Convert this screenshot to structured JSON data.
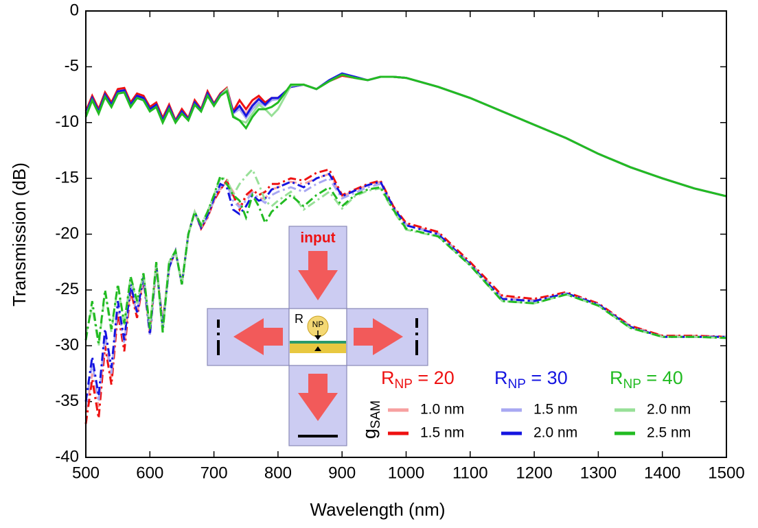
{
  "chart_data": {
    "type": "line",
    "xlabel": "Wavelength  (nm)",
    "ylabel": "Transmission  (dB)",
    "xlim": [
      500,
      1500
    ],
    "ylim": [
      -40,
      0
    ],
    "xticks": [
      500,
      600,
      700,
      800,
      900,
      1000,
      1100,
      1200,
      1300,
      1400,
      1500
    ],
    "yticks": [
      -40,
      -35,
      -30,
      -25,
      -20,
      -15,
      -10,
      -5,
      0
    ],
    "legend": {
      "g": "g",
      "g_sub": "SAM",
      "groups": [
        {
          "r": "R",
          "sub": "NP",
          "eq": " = 20",
          "color": "#ee1111"
        },
        {
          "r": "R",
          "sub": "NP",
          "eq": " = 30",
          "color": "#1515e0"
        },
        {
          "r": "R",
          "sub": "NP",
          "eq": " = 40",
          "color": "#22bb22"
        }
      ]
    },
    "inset": {
      "input": "input",
      "r": "R",
      "np": "NP"
    },
    "x": [
      500,
      510,
      520,
      530,
      540,
      550,
      560,
      570,
      580,
      590,
      600,
      610,
      620,
      630,
      640,
      650,
      660,
      670,
      680,
      690,
      700,
      710,
      720,
      730,
      740,
      750,
      760,
      770,
      780,
      790,
      800,
      820,
      840,
      860,
      880,
      900,
      920,
      940,
      960,
      980,
      1000,
      1050,
      1100,
      1150,
      1200,
      1250,
      1300,
      1350,
      1400,
      1450,
      1500
    ],
    "series": [
      {
        "name": "1.0 nm",
        "color": "#f7a0a0",
        "values": [
          -9.1,
          -7.7,
          -8.8,
          -7.3,
          -8.2,
          -7,
          -6.9,
          -8.2,
          -7.4,
          -7.6,
          -8.6,
          -8.2,
          -9.6,
          -8.4,
          -9.8,
          -8.8,
          -9.6,
          -8,
          -8.8,
          -7.2,
          -8.3,
          -7.4,
          -6.9,
          -9,
          -8.5,
          -9.2,
          -8.4,
          -7.8,
          -8.3,
          -7.9,
          -7.8,
          -6.8,
          -6.6,
          -7,
          -6.3,
          -5.8,
          -6,
          -6.2,
          -5.9,
          -5.9,
          -6,
          -6.8,
          -7.8,
          -9,
          -10.2,
          -11.4,
          -12.8,
          -14,
          -15,
          -15.9,
          -16.6
        ],
        "cross_values": [
          -36,
          -32.5,
          -35.5,
          -29.5,
          -33,
          -26.8,
          -30,
          -24.8,
          -27.3,
          -23.9,
          -29,
          -22.8,
          -28,
          -23,
          -21.5,
          -24.5,
          -20,
          -18,
          -19.5,
          -18.5,
          -17,
          -16,
          -15.3,
          -16.2,
          -17.5,
          -16.8,
          -16.2,
          -16.8,
          -16.8,
          -16,
          -15.8,
          -15.3,
          -15.5,
          -15,
          -14.6,
          -16.6,
          -16.1,
          -15.6,
          -15.3,
          -17.6,
          -19.1,
          -19.9,
          -22.6,
          -25.6,
          -25.9,
          -25.3,
          -26.3,
          -28.2,
          -29.1,
          -29.1,
          -29.2
        ]
      },
      {
        "name": "1.5 nm",
        "color": "#ee1111",
        "values": [
          -9,
          -7.6,
          -8.8,
          -7.3,
          -8.2,
          -7,
          -6.9,
          -8.2,
          -7.4,
          -7.6,
          -8.6,
          -8.2,
          -9.6,
          -8.4,
          -9.8,
          -8.8,
          -9.6,
          -8,
          -8.8,
          -7.2,
          -8.3,
          -7.4,
          -6.9,
          -9,
          -8,
          -8.8,
          -8,
          -7.6,
          -8.2,
          -7.8,
          -7.8,
          -6.8,
          -6.6,
          -7,
          -6.3,
          -5.8,
          -6,
          -6.2,
          -5.9,
          -5.9,
          -6,
          -6.8,
          -7.8,
          -9,
          -10.2,
          -11.4,
          -12.8,
          -14,
          -15,
          -15.9,
          -16.6
        ],
        "cross_values": [
          -37,
          -33,
          -36.5,
          -30,
          -33.5,
          -27,
          -30.5,
          -25,
          -27.5,
          -24,
          -29,
          -22.8,
          -28,
          -23,
          -21.5,
          -24.5,
          -20,
          -18,
          -19.5,
          -18.5,
          -17,
          -16,
          -15.2,
          -16.5,
          -17.8,
          -16.5,
          -16,
          -16.5,
          -16.2,
          -15.5,
          -15.5,
          -15,
          -15.2,
          -14.5,
          -14.2,
          -16.5,
          -16,
          -15.5,
          -15.2,
          -17.5,
          -19,
          -19.8,
          -22.5,
          -25.5,
          -25.8,
          -25.2,
          -26.2,
          -28.2,
          -29.1,
          -29.1,
          -29.2
        ]
      },
      {
        "name": "1.5 nm",
        "color": "#a8a8f2",
        "values": [
          -9.2,
          -7.8,
          -9,
          -7.5,
          -8.4,
          -7.2,
          -7.1,
          -8.4,
          -7.6,
          -7.8,
          -8.8,
          -8.4,
          -9.8,
          -8.6,
          -9.9,
          -9,
          -9.7,
          -8.2,
          -8.9,
          -7.4,
          -8.4,
          -7.5,
          -7,
          -9.2,
          -8.8,
          -9.6,
          -8.8,
          -8.2,
          -8.5,
          -8,
          -7.9,
          -6.8,
          -6.6,
          -7,
          -6.3,
          -5.7,
          -6,
          -6.2,
          -5.9,
          -5.9,
          -6,
          -6.8,
          -7.8,
          -9,
          -10.2,
          -11.4,
          -12.8,
          -14,
          -15,
          -15.9,
          -16.6
        ],
        "cross_values": [
          -35.5,
          -31.5,
          -35,
          -29,
          -32.5,
          -26.3,
          -29.8,
          -24.6,
          -27.1,
          -23.8,
          -29,
          -22.7,
          -28.2,
          -23,
          -21.5,
          -24.5,
          -20,
          -18,
          -19.4,
          -18.4,
          -16.9,
          -15.7,
          -15.5,
          -17,
          -17.6,
          -17,
          -16.3,
          -16.8,
          -17.2,
          -16.5,
          -16.2,
          -15.8,
          -16.2,
          -15.5,
          -15,
          -16.8,
          -16.3,
          -15.8,
          -15.5,
          -17.7,
          -19.2,
          -20,
          -22.7,
          -25.8,
          -26,
          -25.3,
          -26.3,
          -28.3,
          -29.2,
          -29.2,
          -29.2
        ]
      },
      {
        "name": "2.0 nm",
        "color": "#1515e0",
        "values": [
          -9.2,
          -7.8,
          -9,
          -7.5,
          -8.4,
          -7.2,
          -7.1,
          -8.4,
          -7.6,
          -7.8,
          -8.8,
          -8.4,
          -9.8,
          -8.6,
          -9.9,
          -9,
          -9.7,
          -8.2,
          -8.9,
          -7.4,
          -8.4,
          -7.5,
          -7,
          -9.1,
          -8.5,
          -9.4,
          -8.5,
          -7.9,
          -8.4,
          -7.8,
          -7.8,
          -6.8,
          -6.6,
          -7,
          -6.2,
          -5.6,
          -5.9,
          -6.2,
          -5.9,
          -5.9,
          -6,
          -6.8,
          -7.8,
          -9,
          -10.2,
          -11.4,
          -12.8,
          -14,
          -15,
          -15.9,
          -16.6
        ],
        "cross_values": [
          -35,
          -31,
          -34.5,
          -28.5,
          -32,
          -26,
          -29.5,
          -24.5,
          -27,
          -23.8,
          -29,
          -22.7,
          -28.3,
          -23,
          -21.5,
          -24.5,
          -20,
          -18,
          -19.4,
          -18.3,
          -16.8,
          -15.5,
          -15.8,
          -17.8,
          -18.2,
          -17.5,
          -16.5,
          -17,
          -16.8,
          -16,
          -15.8,
          -15.3,
          -15.8,
          -15,
          -14.6,
          -16.6,
          -16.1,
          -15.6,
          -15.3,
          -17.6,
          -19.2,
          -20,
          -22.7,
          -25.8,
          -26,
          -25.3,
          -26.3,
          -28.3,
          -29.2,
          -29.2,
          -29.2
        ]
      },
      {
        "name": "2.0 nm",
        "color": "#98e098",
        "values": [
          -9.4,
          -8,
          -9.2,
          -7.7,
          -8.6,
          -7.4,
          -7.3,
          -8.6,
          -7.8,
          -8,
          -9,
          -8.6,
          -10,
          -8.8,
          -10,
          -9.2,
          -9.8,
          -8.4,
          -9,
          -7.6,
          -8.5,
          -7.6,
          -7,
          -9.4,
          -9.8,
          -10,
          -9.2,
          -8.4,
          -8.8,
          -9.4,
          -8.8,
          -6.7,
          -6.6,
          -7,
          -6.3,
          -5.7,
          -6,
          -6.2,
          -5.9,
          -5.9,
          -6,
          -6.8,
          -7.8,
          -9,
          -10.2,
          -11.4,
          -12.8,
          -14,
          -15,
          -15.9,
          -16.6
        ],
        "cross_values": [
          -29,
          -26.5,
          -30,
          -25.2,
          -28.8,
          -24.6,
          -28.2,
          -23.8,
          -26.2,
          -23.5,
          -28.5,
          -22.5,
          -28.8,
          -22.5,
          -21.5,
          -24.5,
          -20,
          -18,
          -19.2,
          -18,
          -16.5,
          -15,
          -15,
          -16.5,
          -15.5,
          -14.8,
          -14.2,
          -15.5,
          -17,
          -17.5,
          -17,
          -16.2,
          -17.8,
          -17,
          -16.2,
          -17.7,
          -16.6,
          -16.1,
          -15.9,
          -17.9,
          -19.6,
          -20.2,
          -22.8,
          -26,
          -26.2,
          -25.4,
          -26.4,
          -28.4,
          -29.2,
          -29.2,
          -29.3
        ]
      },
      {
        "name": "2.5 nm",
        "color": "#22bb22",
        "values": [
          -9.5,
          -8,
          -9.2,
          -7.7,
          -8.6,
          -7.4,
          -7.3,
          -8.6,
          -7.8,
          -8,
          -9,
          -8.6,
          -10,
          -8.8,
          -10,
          -9.2,
          -9.8,
          -8.4,
          -9,
          -7.6,
          -8.5,
          -7.6,
          -7.2,
          -9.5,
          -9.8,
          -10.5,
          -9.5,
          -8.8,
          -8.8,
          -8.6,
          -8.2,
          -6.6,
          -6.6,
          -7,
          -6.3,
          -5.7,
          -6,
          -6.2,
          -5.9,
          -5.9,
          -6,
          -6.8,
          -7.8,
          -9,
          -10.2,
          -11.4,
          -12.8,
          -14,
          -15,
          -15.9,
          -16.6
        ],
        "cross_values": [
          -29.5,
          -26,
          -29.8,
          -25,
          -28.5,
          -24.5,
          -28,
          -23.8,
          -26,
          -23.5,
          -28.5,
          -22.5,
          -28.8,
          -22.5,
          -21.5,
          -24.5,
          -20,
          -18,
          -19.2,
          -18,
          -16.5,
          -14.8,
          -15.5,
          -16.5,
          -17,
          -18.5,
          -16.5,
          -17.5,
          -19,
          -18,
          -17.5,
          -16.5,
          -17.5,
          -16.5,
          -15.8,
          -17.5,
          -16.5,
          -16,
          -15.8,
          -17.8,
          -19.5,
          -20.2,
          -22.8,
          -26,
          -26.2,
          -25.4,
          -26.4,
          -28.4,
          -29.2,
          -29.2,
          -29.3
        ]
      }
    ]
  }
}
